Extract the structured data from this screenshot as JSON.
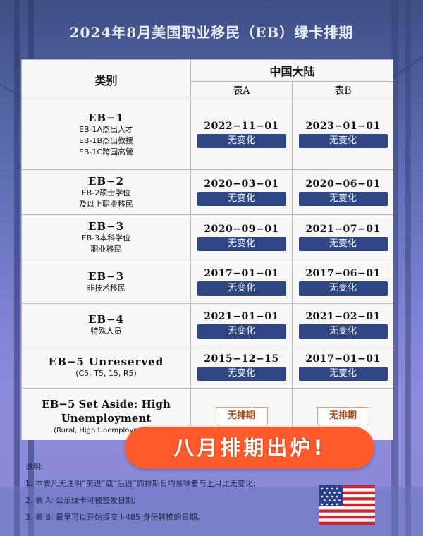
{
  "title": "2024年8月美国职业移民（EB）绿卡排期",
  "table": {
    "category_header": "类别",
    "region_header": "中国大陆",
    "col_a": "表A",
    "col_b": "表B",
    "rows": [
      {
        "name": "EB−1",
        "subs": [
          "EB-1A杰出人才",
          "EB-1B杰出教授",
          "EB-1C跨国高管"
        ],
        "date_a": "2022−11−01",
        "status_a": "无变化",
        "date_b": "2023−01−01",
        "status_b": "无变化"
      },
      {
        "name": "EB−2",
        "subs": [
          "EB-2硕士学位",
          "及以上职业移民"
        ],
        "date_a": "2020−03−01",
        "status_a": "无变化",
        "date_b": "2020−06−01",
        "status_b": "无变化"
      },
      {
        "name": "EB−3",
        "subs": [
          "EB-3本科学位",
          "职业移民"
        ],
        "date_a": "2020−09−01",
        "status_a": "无变化",
        "date_b": "2021−07−01",
        "status_b": "无变化"
      },
      {
        "name": "EB−3",
        "subs": [
          "非技术移民"
        ],
        "date_a": "2017−01−01",
        "status_a": "无变化",
        "date_b": "2017−06−01",
        "status_b": "无变化"
      },
      {
        "name": "EB−4",
        "subs": [
          "特殊人员"
        ],
        "date_a": "2021−01−01",
        "status_a": "无变化",
        "date_b": "2021−02−01",
        "status_b": "无变化"
      },
      {
        "name": "EB−5 Unreserved",
        "subs": [
          "(C5, T5, 15, R5)"
        ],
        "date_a": "2015−12−15",
        "status_a": "无变化",
        "date_b": "2017−01−01",
        "status_b": "无变化"
      },
      {
        "name": "EB−5 Set Aside: High Unemployment",
        "subs": [
          "(Rural, High Unemployment, I"
        ],
        "no_queue_a": "无排期",
        "no_queue_b": "无排期"
      }
    ]
  },
  "sticker_text": "八月排期出炉!",
  "notes": {
    "heading": "说明:",
    "items": [
      "1. 本表凡无注明“前进”或“后退”的排期日均意味着与上月比无变化;",
      "2. 表 A: 公示绿卡可被签发日期;",
      "3. 表 B: 最早可以开始提交 I-485 身份转换的日期。"
    ]
  },
  "colors": {
    "badge": "#2f4584",
    "sticker": "#ff5a2b",
    "no_queue_text": "#b24b15"
  },
  "icons": [
    "us-flag-icon"
  ]
}
